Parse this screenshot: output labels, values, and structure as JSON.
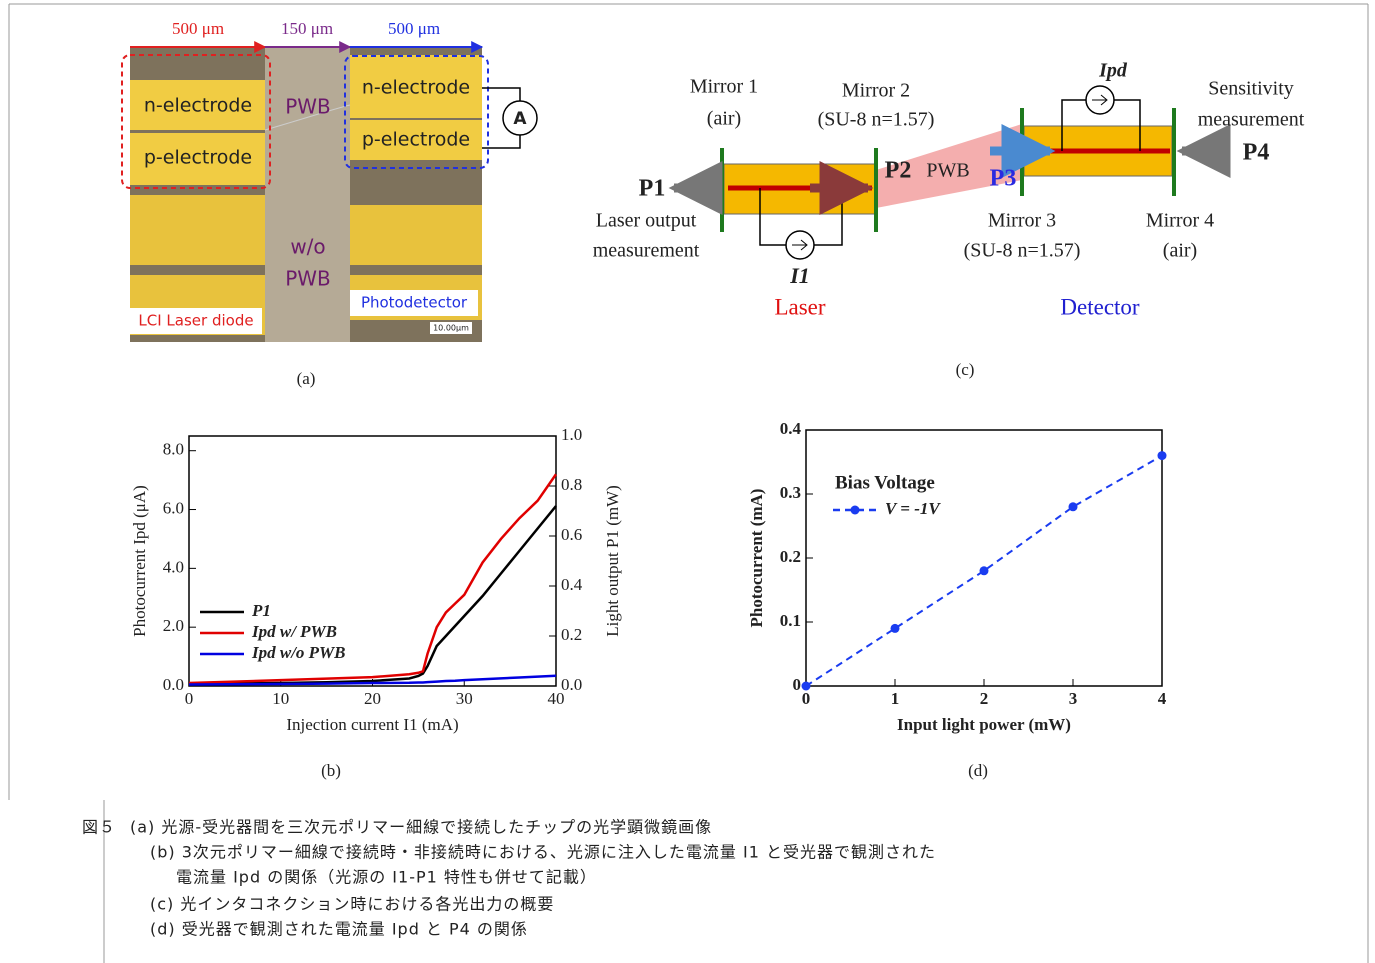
{
  "panel_a": {
    "label": "(a)",
    "dims": [
      "500 μm",
      "150 μm",
      "500 μm"
    ],
    "left_pads": [
      "n-electrode",
      "p-electrode"
    ],
    "right_pads": [
      "n-electrode",
      "p-electrode"
    ],
    "pwb": "PWB",
    "no_pwb": [
      "w/o",
      "PWB"
    ],
    "ammeter": "A",
    "laser_tag": "LCI Laser diode",
    "detector_tag": "Photodetector",
    "scale": "10.00μm"
  },
  "panel_c": {
    "label": "(c)",
    "mirror1": [
      "Mirror 1",
      "(air)"
    ],
    "mirror2": [
      "Mirror 2",
      "(SU-8 n=1.57)"
    ],
    "mirror3": [
      "Mirror 3",
      "(SU-8 n=1.57)"
    ],
    "mirror4": [
      "Mirror 4",
      "(air)"
    ],
    "p1": "P1",
    "p2": "P2",
    "p3": "P3",
    "p4": "P4",
    "pwb": "PWB",
    "ipd": "Ipd",
    "i1": "I1",
    "laser_out": [
      "Laser output",
      "measurement"
    ],
    "sensitivity": [
      "Sensitivity",
      "measurement"
    ],
    "laser": "Laser",
    "detector": "Detector"
  },
  "chart_data": [
    {
      "type": "line",
      "label": "(b)",
      "x_label": "Injection current I1 (mA)",
      "y_label": "Photocurrent Ipd (μA)",
      "y2_label": "Light output P1 (mW)",
      "x": [
        0,
        5,
        10,
        15,
        20,
        24,
        25,
        25.5,
        26,
        27,
        28,
        29,
        30,
        32,
        34,
        36,
        38,
        40
      ],
      "xlim": [
        0,
        40
      ],
      "xticks": [
        0,
        10,
        20,
        30,
        40
      ],
      "ylim": [
        0,
        8.5
      ],
      "yticks": [
        {
          "value": 0,
          "label": "0.0"
        },
        {
          "value": 2,
          "label": "2.0"
        },
        {
          "value": 4,
          "label": "4.0"
        },
        {
          "value": 6,
          "label": "6.0"
        },
        {
          "value": 8,
          "label": "8.0"
        }
      ],
      "y2lim": [
        0,
        1
      ],
      "y2ticks": [
        {
          "value": 0,
          "label": "0.0"
        },
        0.2,
        0.4,
        0.6,
        0.8,
        {
          "value": 1,
          "label": "1.0"
        }
      ],
      "series": [
        {
          "name": "P1",
          "color": "#000000",
          "axis": "y2",
          "values": [
            0.01,
            0.01,
            0.012,
            0.015,
            0.02,
            0.03,
            0.04,
            0.05,
            0.08,
            0.16,
            0.2,
            0.24,
            0.28,
            0.36,
            0.45,
            0.54,
            0.63,
            0.72
          ]
        },
        {
          "name": "Ipd w/ PWB",
          "color": "#e00000",
          "values": [
            0.1,
            0.15,
            0.2,
            0.25,
            0.3,
            0.4,
            0.45,
            0.5,
            1.1,
            2.0,
            2.5,
            2.8,
            3.1,
            4.2,
            5.0,
            5.7,
            6.3,
            7.2
          ]
        },
        {
          "name": "Ipd w/o PWB",
          "color": "#0000e0",
          "values": [
            0.05,
            0.06,
            0.07,
            0.08,
            0.1,
            0.11,
            0.12,
            0.12,
            0.13,
            0.15,
            0.17,
            0.18,
            0.2,
            0.23,
            0.26,
            0.29,
            0.32,
            0.35
          ]
        }
      ]
    },
    {
      "type": "line",
      "label": "(d)",
      "marker": true,
      "dashed": true,
      "x_label": "Input light power (mW)",
      "y_label": "Photocurrent (mA)",
      "legend_title": "Bias Voltage",
      "x": [
        0,
        1,
        2,
        3,
        4
      ],
      "xlim": [
        0,
        4
      ],
      "xticks": [
        0,
        1,
        2,
        3,
        4
      ],
      "ylim": [
        0,
        0.4
      ],
      "yticks": [
        0,
        0.1,
        0.2,
        0.3,
        0.4
      ],
      "series": [
        {
          "name": "V = -1V",
          "color": "#1a3cf0",
          "values": [
            0,
            0.09,
            0.18,
            0.28,
            0.36
          ]
        }
      ]
    }
  ],
  "caption": {
    "figure": "図５",
    "lines": [
      "(a) 光源-受光器間を三次元ポリマー細線で接続したチップの光学顕微鏡画像",
      "(b) 3次元ポリマー細線で接続時・非接続時における、光源に注入した電流量 I1 と受光器で観測された",
      "電流量 Ipd の関係（光源の I1-P1 特性も併せて記載）",
      "(c) 光インタコネクション時における各光出力の概要",
      "(d) 受光器で観測された電流量 Ipd と P4 の関係"
    ]
  }
}
